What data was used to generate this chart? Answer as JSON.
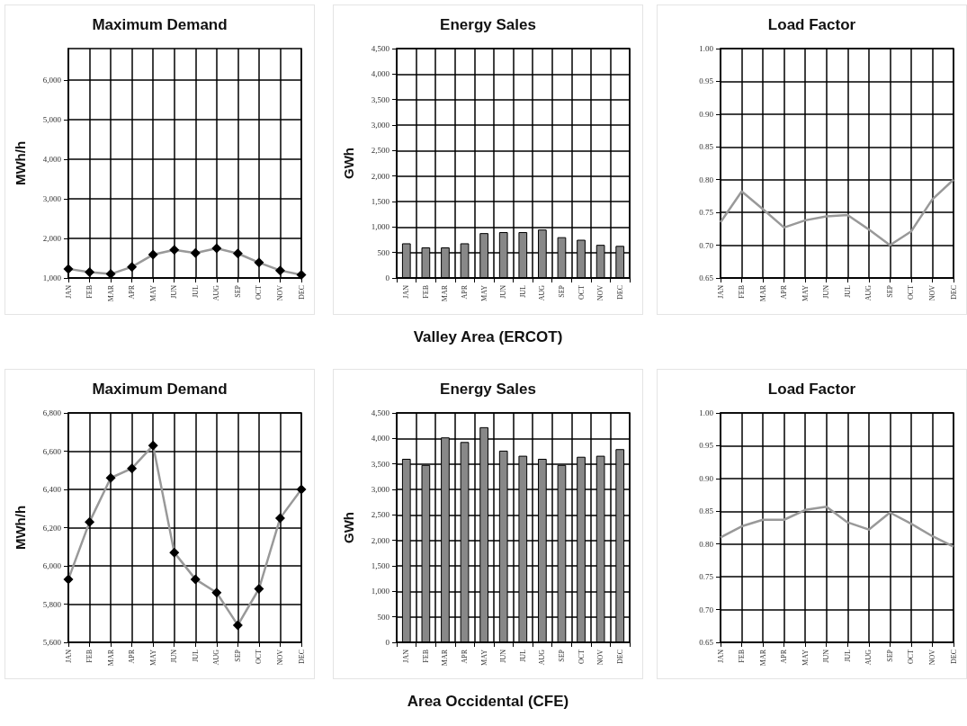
{
  "chart_data": [
    {
      "type": "line",
      "title": "Maximum Demand",
      "ylabel": "MWh/h",
      "categories": [
        "JAN",
        "FEB",
        "MAR",
        "APR",
        "MAY",
        "JUN",
        "JUL",
        "AUG",
        "SEP",
        "OCT",
        "NOV",
        "DEC"
      ],
      "series": [
        {
          "color": "#999999",
          "values": [
            1230,
            1150,
            1100,
            1280,
            1590,
            1710,
            1630,
            1750,
            1620,
            1390,
            1190,
            1080
          ]
        }
      ],
      "marker": "diamond",
      "grid": true,
      "ylim": [
        1000,
        6800
      ],
      "yticks": [
        {
          "value": 1000,
          "label": "1,000"
        },
        {
          "value": 2000,
          "label": "2,000"
        },
        {
          "value": 3000,
          "label": "3,000"
        },
        {
          "value": 4000,
          "label": "4,000"
        },
        {
          "value": 5000,
          "label": "5,000"
        },
        {
          "value": 6000,
          "label": "6,000"
        }
      ]
    },
    {
      "type": "bar",
      "title": "Energy Sales",
      "ylabel": "GWh",
      "categories": [
        "JAN",
        "FEB",
        "MAR",
        "APR",
        "MAY",
        "JUN",
        "JUL",
        "AUG",
        "SEP",
        "OCT",
        "NOV",
        "DEC"
      ],
      "series": [
        {
          "color": "#888888",
          "values": [
            680,
            600,
            600,
            680,
            880,
            900,
            900,
            950,
            800,
            750,
            650,
            630
          ]
        }
      ],
      "grid": true,
      "ylim": [
        0,
        4500
      ],
      "yticks": [
        {
          "value": 0,
          "label": "0"
        },
        {
          "value": 500,
          "label": "500"
        },
        {
          "value": 1000,
          "label": "1,000"
        },
        {
          "value": 1500,
          "label": "1,500"
        },
        {
          "value": 2000,
          "label": "2,000"
        },
        {
          "value": 2500,
          "label": "2,500"
        },
        {
          "value": 3000,
          "label": "3,000"
        },
        {
          "value": 3500,
          "label": "3,500"
        },
        {
          "value": 4000,
          "label": "4,000"
        },
        {
          "value": 4500,
          "label": "4,500"
        }
      ],
      "annotations": [
        "Valley Area (ERCOT)"
      ]
    },
    {
      "type": "line",
      "title": "Load Factor",
      "categories": [
        "JAN",
        "FEB",
        "MAR",
        "APR",
        "MAY",
        "JUN",
        "JUL",
        "AUG",
        "SEP",
        "OCT",
        "NOV",
        "DEC"
      ],
      "series": [
        {
          "color": "#999999",
          "values": [
            0.735,
            0.782,
            0.755,
            0.727,
            0.738,
            0.744,
            0.746,
            0.724,
            0.7,
            0.721,
            0.77,
            0.8
          ]
        }
      ],
      "marker": "none",
      "grid": true,
      "ylim": [
        0.65,
        1.0
      ],
      "yticks": [
        {
          "value": 0.65,
          "label": "0.65"
        },
        {
          "value": 0.7,
          "label": "0.70"
        },
        {
          "value": 0.75,
          "label": "0.75"
        },
        {
          "value": 0.8,
          "label": "0.80"
        },
        {
          "value": 0.85,
          "label": "0.85"
        },
        {
          "value": 0.9,
          "label": "0.90"
        },
        {
          "value": 0.95,
          "label": "0.95"
        },
        {
          "value": 1.0,
          "label": "1.00"
        }
      ]
    },
    {
      "type": "line",
      "title": "Maximum Demand",
      "ylabel": "MWh/h",
      "categories": [
        "JAN",
        "FEB",
        "MAR",
        "APR",
        "MAY",
        "JUN",
        "JUL",
        "AUG",
        "SEP",
        "OCT",
        "NOV",
        "DEC"
      ],
      "series": [
        {
          "color": "#999999",
          "values": [
            5930,
            6230,
            6460,
            6510,
            6630,
            6070,
            5930,
            5860,
            5690,
            5880,
            6250,
            6400
          ]
        }
      ],
      "marker": "diamond",
      "grid": true,
      "ylim": [
        5600,
        6800
      ],
      "yticks": [
        {
          "value": 5600,
          "label": "5,600"
        },
        {
          "value": 5800,
          "label": "5,800"
        },
        {
          "value": 6000,
          "label": "6,000"
        },
        {
          "value": 6200,
          "label": "6,200"
        },
        {
          "value": 6400,
          "label": "6,400"
        },
        {
          "value": 6600,
          "label": "6,600"
        },
        {
          "value": 6800,
          "label": "6,800"
        }
      ]
    },
    {
      "type": "bar",
      "title": "Energy Sales",
      "ylabel": "GWh",
      "categories": [
        "JAN",
        "FEB",
        "MAR",
        "APR",
        "MAY",
        "JUN",
        "JUL",
        "AUG",
        "SEP",
        "OCT",
        "NOV",
        "DEC"
      ],
      "series": [
        {
          "color": "#888888",
          "values": [
            3600,
            3480,
            4020,
            3930,
            4220,
            3760,
            3660,
            3600,
            3480,
            3640,
            3660,
            3790
          ]
        }
      ],
      "grid": true,
      "ylim": [
        0,
        4500
      ],
      "yticks": [
        {
          "value": 0,
          "label": "0"
        },
        {
          "value": 500,
          "label": "500"
        },
        {
          "value": 1000,
          "label": "1,000"
        },
        {
          "value": 1500,
          "label": "1,500"
        },
        {
          "value": 2000,
          "label": "2,000"
        },
        {
          "value": 2500,
          "label": "2,500"
        },
        {
          "value": 3000,
          "label": "3,000"
        },
        {
          "value": 3500,
          "label": "3,500"
        },
        {
          "value": 4000,
          "label": "4,000"
        },
        {
          "value": 4500,
          "label": "4,500"
        }
      ],
      "annotations": [
        "Area Occidental (CFE)"
      ]
    },
    {
      "type": "line",
      "title": "Load Factor",
      "categories": [
        "JAN",
        "FEB",
        "MAR",
        "APR",
        "MAY",
        "JUN",
        "JUL",
        "AUG",
        "SEP",
        "OCT",
        "NOV",
        "DEC"
      ],
      "series": [
        {
          "color": "#999999",
          "values": [
            0.81,
            0.827,
            0.837,
            0.837,
            0.852,
            0.857,
            0.833,
            0.822,
            0.848,
            0.831,
            0.812,
            0.796
          ]
        }
      ],
      "marker": "none",
      "grid": true,
      "ylim": [
        0.65,
        1.0
      ],
      "yticks": [
        {
          "value": 0.65,
          "label": "0.65"
        },
        {
          "value": 0.7,
          "label": "0.70"
        },
        {
          "value": 0.75,
          "label": "0.75"
        },
        {
          "value": 0.8,
          "label": "0.80"
        },
        {
          "value": 0.85,
          "label": "0.85"
        },
        {
          "value": 0.9,
          "label": "0.90"
        },
        {
          "value": 0.95,
          "label": "0.95"
        },
        {
          "value": 1.0,
          "label": "1.00"
        }
      ]
    }
  ]
}
